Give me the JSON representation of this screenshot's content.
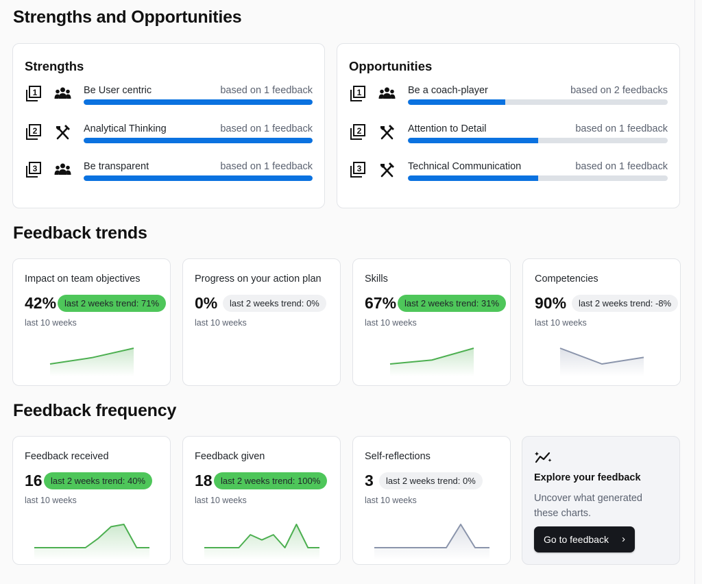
{
  "sections": {
    "strengths_opps": "Strengths and Opportunities",
    "trends": "Feedback trends",
    "frequency": "Feedback frequency"
  },
  "strengths": {
    "title": "Strengths",
    "items": [
      {
        "rank": "1",
        "icon": "people-icon",
        "label": "Be User centric",
        "basis": "based on 1 feedback",
        "progress": 1.0
      },
      {
        "rank": "2",
        "icon": "tools-icon",
        "label": "Analytical Thinking",
        "basis": "based on 1 feedback",
        "progress": 1.0
      },
      {
        "rank": "3",
        "icon": "people-icon",
        "label": "Be transparent",
        "basis": "based on 1 feedback",
        "progress": 1.0
      }
    ]
  },
  "opportunities": {
    "title": "Opportunities",
    "items": [
      {
        "rank": "1",
        "icon": "people-icon",
        "label": "Be a coach-player",
        "basis": "based on 2 feedbacks",
        "progress": 0.375
      },
      {
        "rank": "2",
        "icon": "tools-icon",
        "label": "Attention to Detail",
        "basis": "based on 1 feedback",
        "progress": 0.5
      },
      {
        "rank": "3",
        "icon": "tools-icon",
        "label": "Technical Communication",
        "basis": "based on 1 feedback",
        "progress": 0.5
      }
    ]
  },
  "trends": [
    {
      "title": "Impact on team objectives",
      "value": "42%",
      "trend": "last 2 weeks trend: 71%",
      "trend_positive": true,
      "period": "last 10 weeks",
      "spark": [
        0,
        1,
        2.5
      ],
      "color": "#4caf50"
    },
    {
      "title": "Progress on your action plan",
      "value": "0%",
      "trend": "last 2 weeks trend: 0%",
      "trend_positive": false,
      "period": "last 10 weeks",
      "spark": [],
      "color": "#4caf50"
    },
    {
      "title": "Skills",
      "value": "67%",
      "trend": "last 2 weeks trend: 31%",
      "trend_positive": true,
      "period": "last 10 weeks",
      "spark": [
        0,
        0.5,
        2
      ],
      "color": "#4caf50"
    },
    {
      "title": "Competencies",
      "value": "90%",
      "trend": "last 2 weeks trend: -8%",
      "trend_positive": false,
      "period": "last 10 weeks",
      "spark": [
        1.2,
        0,
        0.5
      ],
      "color": "#8a94ab"
    }
  ],
  "frequency": [
    {
      "title": "Feedback received",
      "value": "16",
      "trend": "last 2 weeks trend: 40%",
      "trend_positive": true,
      "period": "last 10 weeks",
      "spark": [
        0,
        0,
        0,
        0,
        0,
        2,
        4.5,
        5,
        0,
        0
      ],
      "color": "#4caf50"
    },
    {
      "title": "Feedback given",
      "value": "18",
      "trend": "last 2 weeks trend: 100%",
      "trend_positive": true,
      "period": "last 10 weeks",
      "spark": [
        0,
        0,
        0,
        0,
        2.5,
        1.5,
        2.5,
        0,
        4.5,
        0,
        0
      ],
      "color": "#4caf50"
    },
    {
      "title": "Self-reflections",
      "value": "3",
      "trend": "last 2 weeks trend: 0%",
      "trend_positive": false,
      "period": "last 10 weeks",
      "spark": [
        0,
        0,
        0,
        0,
        0,
        0,
        3,
        0,
        0
      ],
      "color": "#8a94ab"
    }
  ],
  "explore": {
    "icon": "sparkle-chart-icon",
    "title": "Explore your feedback",
    "description": "Uncover what generated these charts.",
    "button": "Go to feedback"
  },
  "colors": {
    "accent_blue": "#0b72e0",
    "trend_green": "#4ec65a",
    "track": "#dde1e6"
  }
}
